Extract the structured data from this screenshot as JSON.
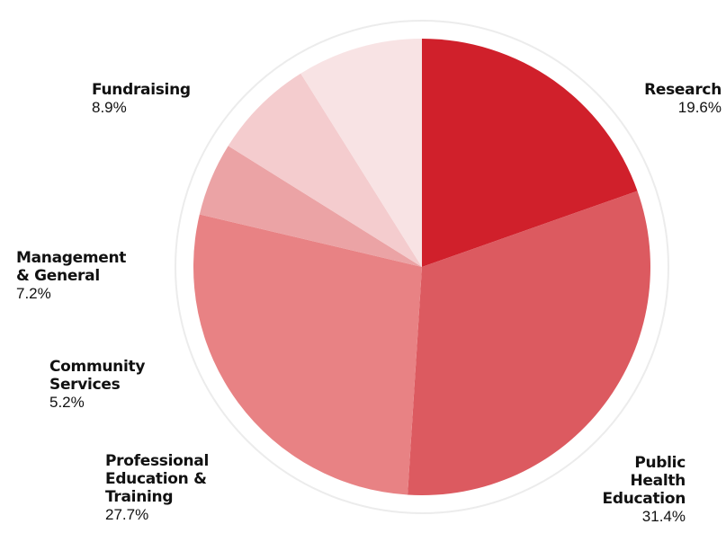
{
  "chart_data": {
    "type": "pie",
    "categories": [
      "Research",
      "Public\nHealth\nEducation",
      "Professional\nEducation &\nTraining",
      "Community\nServices",
      "Management\n& General",
      "Fundraising"
    ],
    "values": [
      19.6,
      31.4,
      27.7,
      5.2,
      7.2,
      8.9
    ],
    "labels": [
      "19.6%",
      "31.4%",
      "27.7%",
      "5.2%",
      "7.2%",
      "8.9%"
    ],
    "colors": [
      "#d0202b",
      "#dc5a60",
      "#e88284",
      "#eba3a5",
      "#f4ccce",
      "#f8e3e4"
    ]
  }
}
